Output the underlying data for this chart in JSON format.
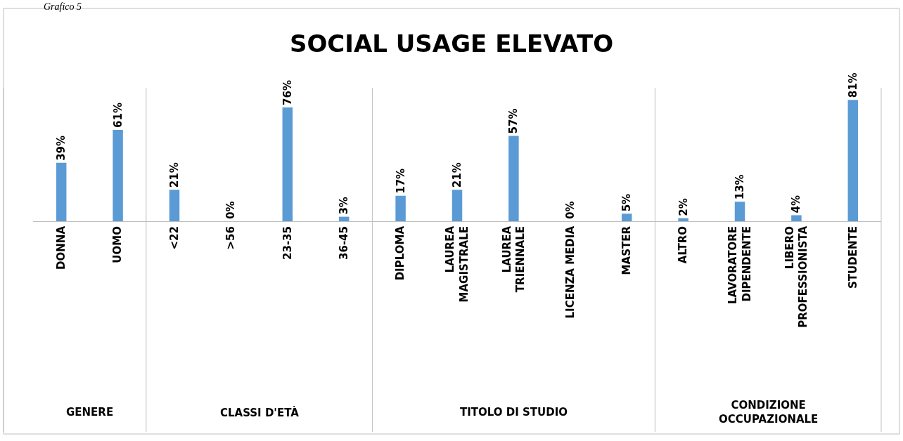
{
  "chart_data": {
    "type": "bar",
    "title": "SOCIAL USAGE ELEVATO",
    "categories": [
      "DONNA",
      "UOMO",
      "<22",
      ">56",
      "23-35",
      "36-45",
      "DIPLOMA",
      "LAUREA MAGISTRALE",
      "LAUREA TRIENNALE",
      "LICENZA MEDIA",
      "MASTER",
      "ALTRO",
      "LAVORATORE DIPENDENTE",
      "LIBERO PROFESSIONISTA",
      "STUDENTE"
    ],
    "values": [
      39,
      61,
      21,
      0,
      76,
      3,
      17,
      21,
      57,
      0,
      5,
      2,
      13,
      4,
      81
    ],
    "value_labels": [
      "39%",
      "61%",
      "21%",
      "0%",
      "76%",
      "3%",
      "17%",
      "21%",
      "57%",
      "0%",
      "5%",
      "2%",
      "13%",
      "4%",
      "81%"
    ],
    "color": "#5b9bd5",
    "annotations": [
      "GENERE",
      "CLASSI D'ETÀ",
      "TITOLO DI STUDIO",
      "CONDIZIONE OCCUPAZIONALE",
      "Grafico 5"
    ]
  }
}
